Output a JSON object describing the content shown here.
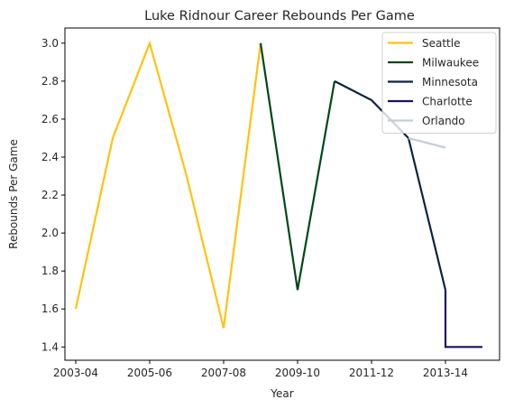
{
  "chart_data": {
    "type": "line",
    "title": "Luke Ridnour Career Rebounds Per Game",
    "xlabel": "Year",
    "ylabel": "Rebounds Per Game",
    "categories": [
      "2003-04",
      "2004-05",
      "2005-06",
      "2006-07",
      "2007-08",
      "2008-09",
      "2009-10",
      "2010-11",
      "2011-12",
      "2012-13",
      "2013-14",
      "2014-15"
    ],
    "x_tick_labels": [
      "2003-04",
      "2005-06",
      "2007-08",
      "2009-10",
      "2011-12",
      "2013-14"
    ],
    "y_ticks": [
      "1.4",
      "1.6",
      "1.8",
      "2.0",
      "2.2",
      "2.4",
      "2.6",
      "2.8",
      "3.0"
    ],
    "ylim": [
      1.33,
      3.08
    ],
    "grid": false,
    "legend_position": "top-right",
    "series": [
      {
        "name": "Seattle",
        "color": "#FFC20E",
        "points": [
          [
            "2003-04",
            1.6
          ],
          [
            "2004-05",
            2.5
          ],
          [
            "2005-06",
            3.0
          ],
          [
            "2006-07",
            2.3
          ],
          [
            "2007-08",
            1.5
          ],
          [
            "2008-09",
            3.0
          ]
        ]
      },
      {
        "name": "Milwaukee",
        "color": "#00471B",
        "points": [
          [
            "2008-09",
            3.0
          ],
          [
            "2009-10",
            1.7
          ],
          [
            "2010-11",
            2.8
          ]
        ]
      },
      {
        "name": "Minnesota",
        "color": "#0C2340",
        "points": [
          [
            "2010-11",
            2.8
          ],
          [
            "2011-12",
            2.7
          ],
          [
            "2012-13",
            2.5
          ],
          [
            "2013-14",
            1.7
          ]
        ]
      },
      {
        "name": "Charlotte",
        "color": "#1D1160",
        "points": [
          [
            "2013-14",
            1.7
          ],
          [
            "2013-14",
            1.4
          ],
          [
            "2014-15",
            1.4
          ]
        ]
      },
      {
        "name": "Orlando",
        "color": "#C4CED4",
        "points": [
          [
            "2012-13",
            2.5
          ],
          [
            "2013-14",
            2.45
          ]
        ]
      }
    ]
  }
}
